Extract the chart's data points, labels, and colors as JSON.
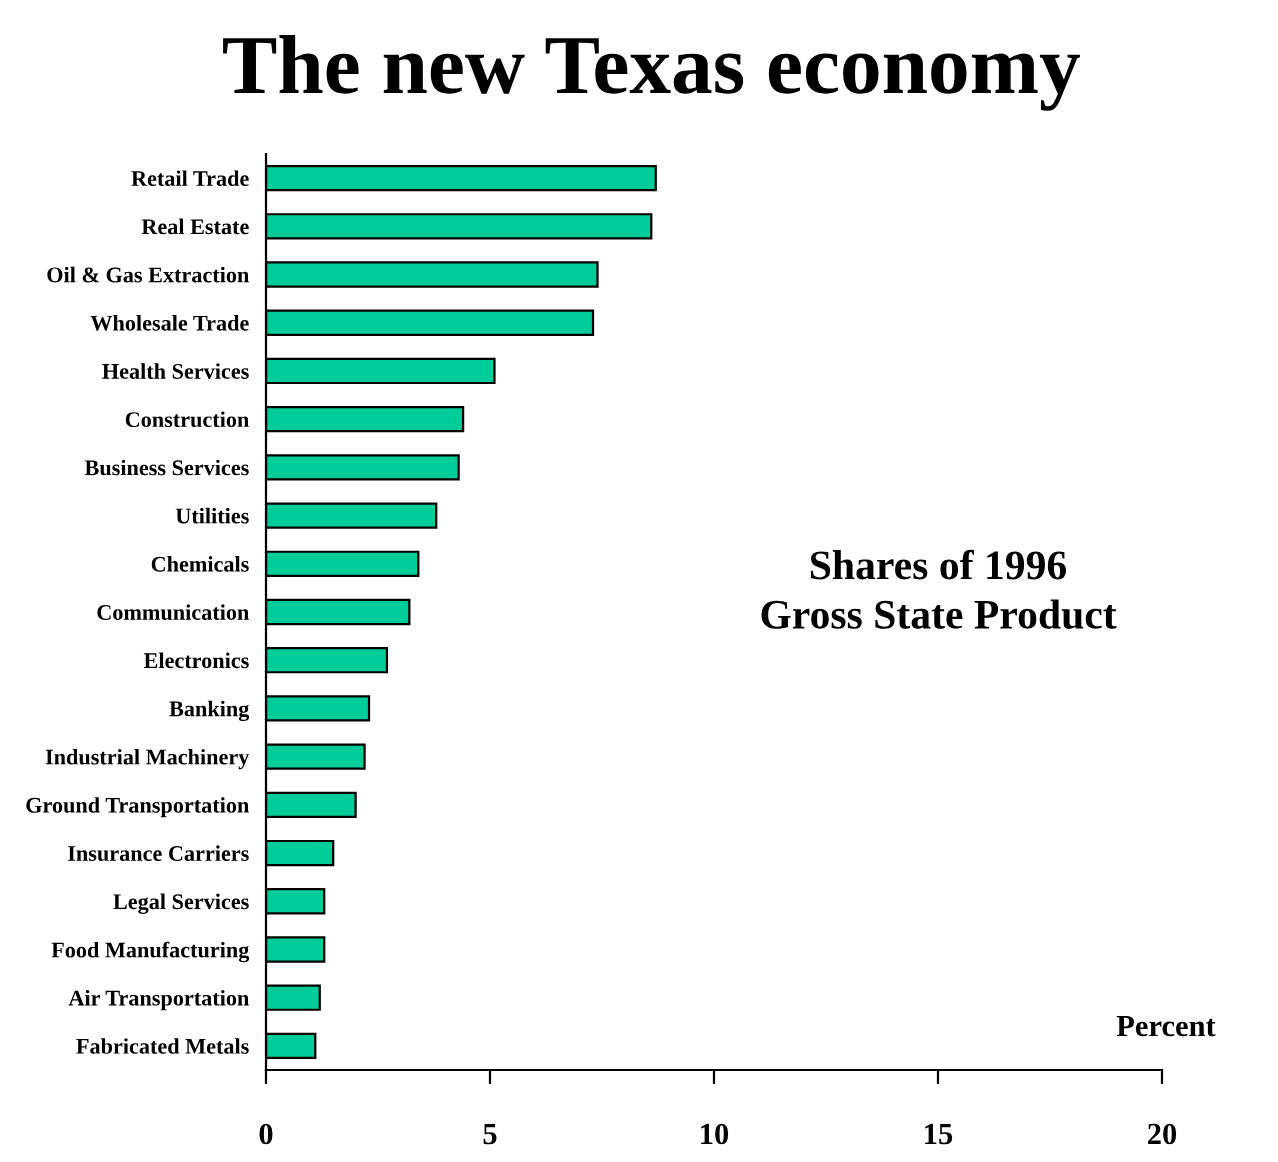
{
  "chart_data": {
    "type": "bar",
    "orientation": "horizontal",
    "title": "The new Texas economy",
    "xlabel": "Percent",
    "categories": [
      "Retail Trade",
      "Real Estate",
      "Oil & Gas Extraction",
      "Wholesale Trade",
      "Health Services",
      "Construction",
      "Business Services",
      "Utilities",
      "Chemicals",
      "Communication",
      "Electronics",
      "Banking",
      "Industrial Machinery",
      "Ground Transportation",
      "Insurance Carriers",
      "Legal Services",
      "Food Manufacturing",
      "Air Transportation",
      "Fabricated Metals"
    ],
    "values": [
      8.7,
      8.6,
      7.4,
      7.3,
      5.1,
      4.4,
      4.3,
      3.8,
      3.4,
      3.2,
      2.7,
      2.3,
      2.2,
      2.0,
      1.5,
      1.3,
      1.3,
      1.2,
      1.1
    ],
    "color": "#00cc99",
    "xlim": [
      0,
      20
    ],
    "xticks": [
      0,
      5,
      10,
      15,
      20
    ],
    "annotations": [
      "Shares of 1996\nGross State Product"
    ],
    "grid": false,
    "legend": false
  }
}
